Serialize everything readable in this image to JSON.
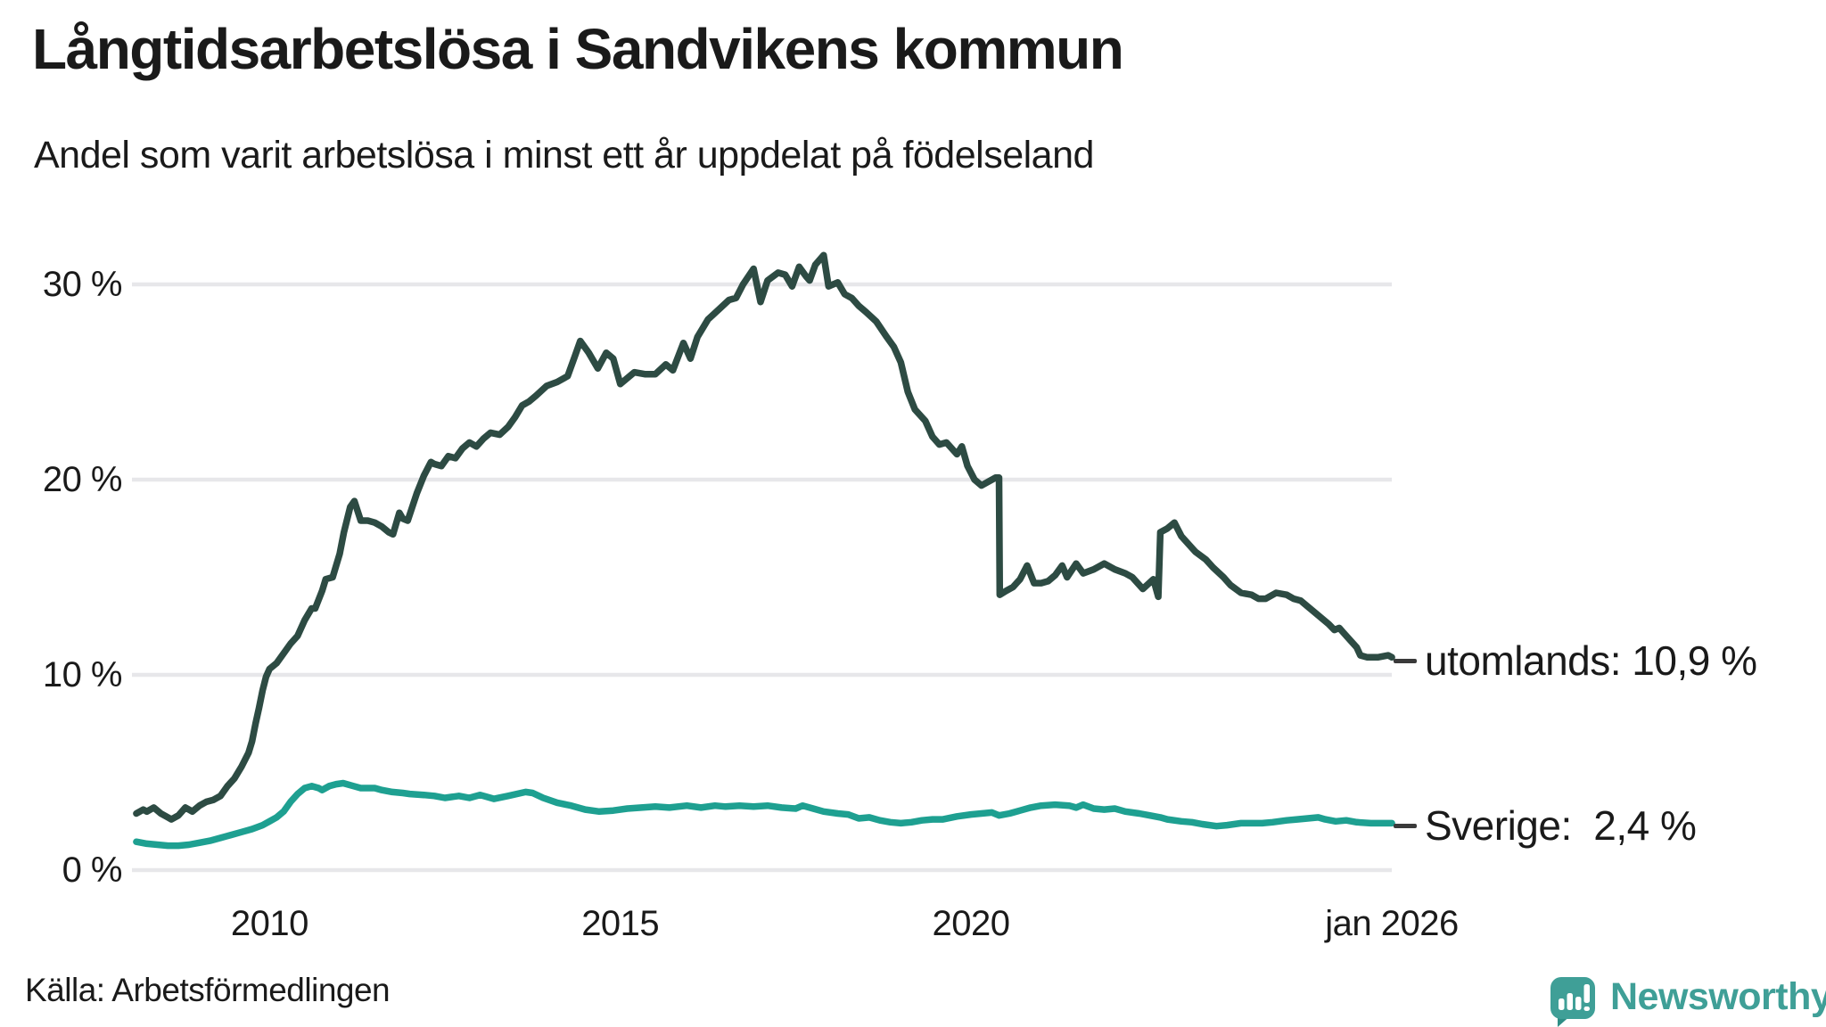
{
  "header": {
    "title": "Långtidsarbetslösa i Sandvikens kommun",
    "subtitle": "Andel som varit arbetslösa i minst ett år uppdelat på födelseland"
  },
  "footer": {
    "source": "Källa: Arbetsförmedlingen",
    "brand": "Newsworthy"
  },
  "colors": {
    "foreign_born_line": "#2d4b43",
    "sweden_line": "#1ea091",
    "grid": "#e7e7ea",
    "text": "#1a1a1a",
    "brand_teal": "#3f9f97",
    "leader_dash": "#3a3a3a"
  },
  "chart_data": {
    "type": "line",
    "title": "Långtidsarbetslösa i Sandvikens kommun",
    "subtitle": "Andel som varit arbetslösa i minst ett år uppdelat på födelseland",
    "unit": "%",
    "grid": true,
    "x_axis": {
      "range_years": [
        2008,
        2026.1
      ],
      "ticks": [
        {
          "year": 2010,
          "label": "2010"
        },
        {
          "year": 2015,
          "label": "2015"
        },
        {
          "year": 2020,
          "label": "2020"
        },
        {
          "year": 2026,
          "label": "jan 2026"
        }
      ]
    },
    "y_axis": {
      "range": [
        0,
        32
      ],
      "ticks": [
        {
          "value": 0,
          "label": "0 %"
        },
        {
          "value": 10,
          "label": "10 %"
        },
        {
          "value": 20,
          "label": "20 %"
        },
        {
          "value": 30,
          "label": "30 %"
        }
      ]
    },
    "series": [
      {
        "name": "utomlands",
        "color": "#2d4b43",
        "end_label": "utomlands: 10,9 %",
        "last_value_label": "10,9 %",
        "points": [
          [
            2008.1,
            2.9
          ],
          [
            2008.2,
            3.1
          ],
          [
            2008.25,
            3.0
          ],
          [
            2008.35,
            3.2
          ],
          [
            2008.45,
            2.9
          ],
          [
            2008.55,
            2.7
          ],
          [
            2008.6,
            2.6
          ],
          [
            2008.7,
            2.8
          ],
          [
            2008.8,
            3.2
          ],
          [
            2008.9,
            3.0
          ],
          [
            2009.0,
            3.3
          ],
          [
            2009.1,
            3.5
          ],
          [
            2009.2,
            3.6
          ],
          [
            2009.3,
            3.8
          ],
          [
            2009.4,
            4.3
          ],
          [
            2009.5,
            4.7
          ],
          [
            2009.6,
            5.3
          ],
          [
            2009.7,
            6.0
          ],
          [
            2009.75,
            6.6
          ],
          [
            2009.8,
            7.5
          ],
          [
            2009.85,
            8.3
          ],
          [
            2009.9,
            9.2
          ],
          [
            2009.95,
            9.9
          ],
          [
            2010.0,
            10.3
          ],
          [
            2010.1,
            10.6
          ],
          [
            2010.2,
            11.1
          ],
          [
            2010.3,
            11.6
          ],
          [
            2010.4,
            12.0
          ],
          [
            2010.5,
            12.8
          ],
          [
            2010.6,
            13.4
          ],
          [
            2010.65,
            13.4
          ],
          [
            2010.75,
            14.3
          ],
          [
            2010.8,
            14.9
          ],
          [
            2010.9,
            15.0
          ],
          [
            2011.0,
            16.2
          ],
          [
            2011.06,
            17.3
          ],
          [
            2011.15,
            18.6
          ],
          [
            2011.21,
            18.9
          ],
          [
            2011.3,
            17.9
          ],
          [
            2011.4,
            17.9
          ],
          [
            2011.5,
            17.8
          ],
          [
            2011.6,
            17.6
          ],
          [
            2011.7,
            17.3
          ],
          [
            2011.76,
            17.2
          ],
          [
            2011.85,
            18.3
          ],
          [
            2011.9,
            18.0
          ],
          [
            2011.97,
            17.9
          ],
          [
            2012.1,
            19.3
          ],
          [
            2012.2,
            20.2
          ],
          [
            2012.3,
            20.9
          ],
          [
            2012.35,
            20.8
          ],
          [
            2012.45,
            20.7
          ],
          [
            2012.55,
            21.2
          ],
          [
            2012.65,
            21.1
          ],
          [
            2012.75,
            21.6
          ],
          [
            2012.85,
            21.9
          ],
          [
            2012.95,
            21.7
          ],
          [
            2013.05,
            22.1
          ],
          [
            2013.15,
            22.4
          ],
          [
            2013.28,
            22.3
          ],
          [
            2013.4,
            22.7
          ],
          [
            2013.5,
            23.2
          ],
          [
            2013.6,
            23.8
          ],
          [
            2013.7,
            24.0
          ],
          [
            2013.8,
            24.3
          ],
          [
            2013.95,
            24.8
          ],
          [
            2014.1,
            25.0
          ],
          [
            2014.25,
            25.3
          ],
          [
            2014.35,
            26.3
          ],
          [
            2014.43,
            27.1
          ],
          [
            2014.55,
            26.5
          ],
          [
            2014.68,
            25.7
          ],
          [
            2014.8,
            26.5
          ],
          [
            2014.9,
            26.2
          ],
          [
            2015.0,
            24.9
          ],
          [
            2015.1,
            25.2
          ],
          [
            2015.2,
            25.5
          ],
          [
            2015.35,
            25.4
          ],
          [
            2015.5,
            25.4
          ],
          [
            2015.65,
            25.9
          ],
          [
            2015.75,
            25.6
          ],
          [
            2015.9,
            27.0
          ],
          [
            2016.0,
            26.2
          ],
          [
            2016.1,
            27.3
          ],
          [
            2016.25,
            28.2
          ],
          [
            2016.4,
            28.7
          ],
          [
            2016.55,
            29.2
          ],
          [
            2016.65,
            29.3
          ],
          [
            2016.75,
            30.0
          ],
          [
            2016.9,
            30.8
          ],
          [
            2017.0,
            29.1
          ],
          [
            2017.1,
            30.2
          ],
          [
            2017.25,
            30.6
          ],
          [
            2017.35,
            30.5
          ],
          [
            2017.45,
            29.9
          ],
          [
            2017.55,
            30.9
          ],
          [
            2017.65,
            30.4
          ],
          [
            2017.7,
            30.2
          ],
          [
            2017.78,
            31.0
          ],
          [
            2017.9,
            31.5
          ],
          [
            2017.97,
            29.9
          ],
          [
            2018.1,
            30.1
          ],
          [
            2018.2,
            29.5
          ],
          [
            2018.3,
            29.3
          ],
          [
            2018.4,
            28.9
          ],
          [
            2018.5,
            28.6
          ],
          [
            2018.65,
            28.1
          ],
          [
            2018.8,
            27.3
          ],
          [
            2018.9,
            26.8
          ],
          [
            2019.0,
            26.0
          ],
          [
            2019.1,
            24.5
          ],
          [
            2019.2,
            23.6
          ],
          [
            2019.35,
            23.0
          ],
          [
            2019.45,
            22.2
          ],
          [
            2019.55,
            21.8
          ],
          [
            2019.65,
            21.9
          ],
          [
            2019.8,
            21.3
          ],
          [
            2019.87,
            21.7
          ],
          [
            2019.95,
            20.7
          ],
          [
            2020.05,
            20.0
          ],
          [
            2020.15,
            19.7
          ],
          [
            2020.25,
            19.9
          ],
          [
            2020.35,
            20.1
          ],
          [
            2020.4,
            20.1
          ],
          [
            2020.41,
            14.1
          ],
          [
            2020.5,
            14.3
          ],
          [
            2020.6,
            14.5
          ],
          [
            2020.7,
            14.9
          ],
          [
            2020.8,
            15.6
          ],
          [
            2020.9,
            14.7
          ],
          [
            2021.0,
            14.7
          ],
          [
            2021.1,
            14.8
          ],
          [
            2021.2,
            15.1
          ],
          [
            2021.3,
            15.6
          ],
          [
            2021.37,
            15.0
          ],
          [
            2021.5,
            15.7
          ],
          [
            2021.6,
            15.2
          ],
          [
            2021.75,
            15.4
          ],
          [
            2021.9,
            15.7
          ],
          [
            2022.05,
            15.4
          ],
          [
            2022.2,
            15.2
          ],
          [
            2022.3,
            15.0
          ],
          [
            2022.45,
            14.4
          ],
          [
            2022.6,
            14.9
          ],
          [
            2022.67,
            14.0
          ],
          [
            2022.7,
            17.3
          ],
          [
            2022.8,
            17.5
          ],
          [
            2022.9,
            17.8
          ],
          [
            2023.0,
            17.1
          ],
          [
            2023.2,
            16.3
          ],
          [
            2023.35,
            15.9
          ],
          [
            2023.45,
            15.5
          ],
          [
            2023.6,
            15.0
          ],
          [
            2023.7,
            14.6
          ],
          [
            2023.85,
            14.2
          ],
          [
            2024.0,
            14.1
          ],
          [
            2024.1,
            13.9
          ],
          [
            2024.2,
            13.9
          ],
          [
            2024.35,
            14.2
          ],
          [
            2024.5,
            14.1
          ],
          [
            2024.6,
            13.9
          ],
          [
            2024.7,
            13.8
          ],
          [
            2024.8,
            13.5
          ],
          [
            2024.9,
            13.2
          ],
          [
            2025.0,
            12.9
          ],
          [
            2025.1,
            12.6
          ],
          [
            2025.18,
            12.3
          ],
          [
            2025.25,
            12.4
          ],
          [
            2025.3,
            12.2
          ],
          [
            2025.4,
            11.8
          ],
          [
            2025.5,
            11.4
          ],
          [
            2025.55,
            11.0
          ],
          [
            2025.65,
            10.9
          ],
          [
            2025.8,
            10.9
          ],
          [
            2025.95,
            11.0
          ],
          [
            2026.0,
            10.9
          ]
        ]
      },
      {
        "name": "Sverige",
        "color": "#1ea091",
        "end_label": "Sverige:  2,4 %",
        "last_value_label": "2,4 %",
        "points": [
          [
            2008.1,
            1.45
          ],
          [
            2008.25,
            1.35
          ],
          [
            2008.4,
            1.3
          ],
          [
            2008.55,
            1.25
          ],
          [
            2008.7,
            1.25
          ],
          [
            2008.85,
            1.3
          ],
          [
            2009.0,
            1.4
          ],
          [
            2009.15,
            1.5
          ],
          [
            2009.3,
            1.65
          ],
          [
            2009.45,
            1.8
          ],
          [
            2009.6,
            1.95
          ],
          [
            2009.75,
            2.1
          ],
          [
            2009.9,
            2.3
          ],
          [
            2010.0,
            2.5
          ],
          [
            2010.1,
            2.7
          ],
          [
            2010.2,
            3.0
          ],
          [
            2010.3,
            3.5
          ],
          [
            2010.4,
            3.9
          ],
          [
            2010.5,
            4.2
          ],
          [
            2010.6,
            4.3
          ],
          [
            2010.7,
            4.2
          ],
          [
            2010.75,
            4.1
          ],
          [
            2010.85,
            4.3
          ],
          [
            2010.95,
            4.4
          ],
          [
            2011.05,
            4.45
          ],
          [
            2011.2,
            4.3
          ],
          [
            2011.3,
            4.2
          ],
          [
            2011.5,
            4.2
          ],
          [
            2011.6,
            4.1
          ],
          [
            2011.75,
            4.0
          ],
          [
            2011.9,
            3.95
          ],
          [
            2012.0,
            3.9
          ],
          [
            2012.2,
            3.85
          ],
          [
            2012.35,
            3.8
          ],
          [
            2012.5,
            3.7
          ],
          [
            2012.6,
            3.75
          ],
          [
            2012.7,
            3.8
          ],
          [
            2012.85,
            3.7
          ],
          [
            2013.0,
            3.85
          ],
          [
            2013.2,
            3.65
          ],
          [
            2013.4,
            3.8
          ],
          [
            2013.65,
            4.0
          ],
          [
            2013.75,
            3.95
          ],
          [
            2013.9,
            3.7
          ],
          [
            2014.1,
            3.45
          ],
          [
            2014.3,
            3.3
          ],
          [
            2014.5,
            3.1
          ],
          [
            2014.7,
            3.0
          ],
          [
            2014.9,
            3.05
          ],
          [
            2015.1,
            3.15
          ],
          [
            2015.3,
            3.2
          ],
          [
            2015.5,
            3.25
          ],
          [
            2015.7,
            3.2
          ],
          [
            2015.95,
            3.3
          ],
          [
            2016.15,
            3.2
          ],
          [
            2016.35,
            3.3
          ],
          [
            2016.5,
            3.25
          ],
          [
            2016.7,
            3.3
          ],
          [
            2016.9,
            3.25
          ],
          [
            2017.1,
            3.3
          ],
          [
            2017.3,
            3.2
          ],
          [
            2017.5,
            3.15
          ],
          [
            2017.6,
            3.3
          ],
          [
            2017.75,
            3.15
          ],
          [
            2017.9,
            3.0
          ],
          [
            2018.1,
            2.9
          ],
          [
            2018.25,
            2.85
          ],
          [
            2018.4,
            2.65
          ],
          [
            2018.55,
            2.7
          ],
          [
            2018.7,
            2.55
          ],
          [
            2018.85,
            2.45
          ],
          [
            2019.0,
            2.4
          ],
          [
            2019.15,
            2.45
          ],
          [
            2019.3,
            2.55
          ],
          [
            2019.45,
            2.6
          ],
          [
            2019.6,
            2.6
          ],
          [
            2019.8,
            2.75
          ],
          [
            2020.0,
            2.85
          ],
          [
            2020.15,
            2.9
          ],
          [
            2020.3,
            2.95
          ],
          [
            2020.4,
            2.8
          ],
          [
            2020.55,
            2.9
          ],
          [
            2020.7,
            3.05
          ],
          [
            2020.85,
            3.2
          ],
          [
            2021.0,
            3.3
          ],
          [
            2021.2,
            3.35
          ],
          [
            2021.4,
            3.3
          ],
          [
            2021.5,
            3.2
          ],
          [
            2021.6,
            3.35
          ],
          [
            2021.75,
            3.15
          ],
          [
            2021.9,
            3.1
          ],
          [
            2022.05,
            3.15
          ],
          [
            2022.2,
            3.0
          ],
          [
            2022.4,
            2.9
          ],
          [
            2022.55,
            2.8
          ],
          [
            2022.7,
            2.7
          ],
          [
            2022.8,
            2.6
          ],
          [
            2023.0,
            2.5
          ],
          [
            2023.15,
            2.45
          ],
          [
            2023.3,
            2.35
          ],
          [
            2023.5,
            2.25
          ],
          [
            2023.65,
            2.3
          ],
          [
            2023.85,
            2.4
          ],
          [
            2024.0,
            2.4
          ],
          [
            2024.15,
            2.4
          ],
          [
            2024.3,
            2.45
          ],
          [
            2024.5,
            2.55
          ],
          [
            2024.65,
            2.6
          ],
          [
            2024.8,
            2.65
          ],
          [
            2024.95,
            2.7
          ],
          [
            2025.05,
            2.6
          ],
          [
            2025.2,
            2.5
          ],
          [
            2025.35,
            2.55
          ],
          [
            2025.5,
            2.45
          ],
          [
            2025.7,
            2.4
          ],
          [
            2025.85,
            2.4
          ],
          [
            2026.0,
            2.4
          ]
        ]
      }
    ]
  }
}
